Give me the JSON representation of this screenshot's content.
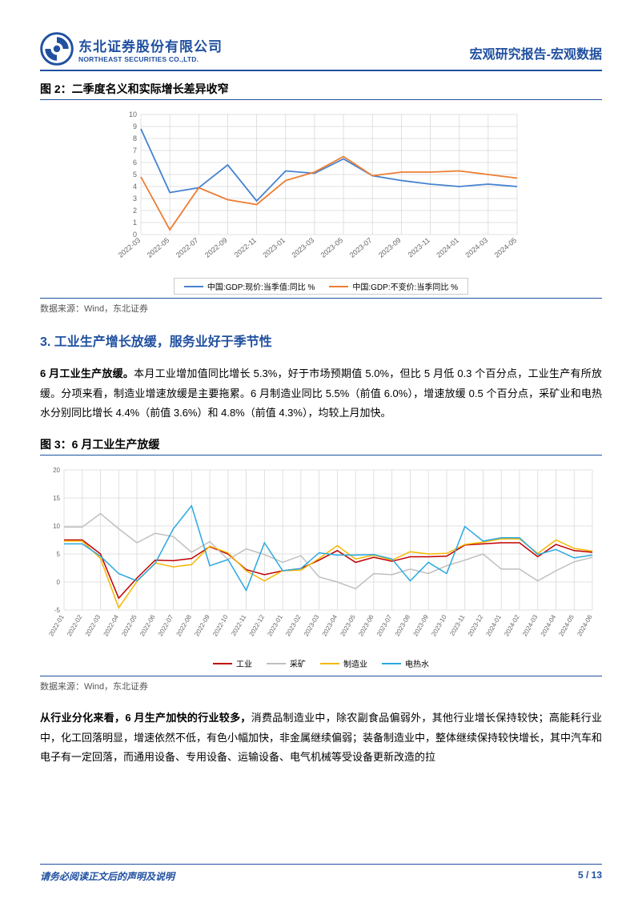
{
  "header": {
    "logo_cn": "东北证券股份有限公司",
    "logo_en": "NORTHEAST SECURITIES CO.,LTD.",
    "right_text": "宏观研究报告-宏观数据"
  },
  "fig2": {
    "title": "图 2：二季度名义和实际增长差异收窄",
    "type": "line",
    "x_labels": [
      "2022-03",
      "2022-05",
      "2022-07",
      "2022-09",
      "2022-11",
      "2023-01",
      "2023-03",
      "2023-05",
      "2023-07",
      "2023-09",
      "2023-11",
      "2024-01",
      "2024-03",
      "2024-05"
    ],
    "series": [
      {
        "name": "中国:GDP:现价:当季值:同比 %",
        "color": "#4682d0",
        "values": [
          8.8,
          3.5,
          3.9,
          5.8,
          2.8,
          5.3,
          5.1,
          6.3,
          4.9,
          4.5,
          4.2,
          4.0,
          4.2,
          4.0
        ]
      },
      {
        "name": "中国:GDP:不变价:当季同比 %",
        "color": "#ed7d31",
        "values": [
          4.8,
          0.4,
          3.9,
          2.9,
          2.5,
          4.5,
          5.2,
          6.5,
          4.9,
          5.2,
          5.2,
          5.3,
          5.0,
          4.7
        ]
      }
    ],
    "ylim": [
      0,
      10
    ],
    "ytick_step": 1,
    "grid_color": "#d9d9d9",
    "background_color": "#ffffff",
    "axis_font_size": 9,
    "line_width": 1.8
  },
  "data_source": "数据来源：Wind，东北证券",
  "section3": {
    "title": "3. 工业生产增长放缓，服务业好于季节性",
    "para1_bold": "6 月工业生产放缓。",
    "para1": "本月工业增加值同比增长 5.3%，好于市场预期值 5.0%，但比 5 月低 0.3 个百分点，工业生产有所放缓。分项来看，制造业增速放缓是主要拖累。6 月制造业同比 5.5%（前值 6.0%），增速放缓 0.5 个百分点，采矿业和电热水分别同比增长 4.4%（前值 3.6%）和 4.8%（前值 4.3%），均较上月加快。"
  },
  "fig3": {
    "title": "图 3：6 月工业生产放缓",
    "type": "line",
    "x_labels": [
      "2022-01",
      "2022-02",
      "2022-03",
      "2022-04",
      "2022-05",
      "2022-06",
      "2022-07",
      "2022-08",
      "2022-09",
      "2022-10",
      "2022-11",
      "2022-12",
      "2023-01",
      "2023-02",
      "2023-03",
      "2023-04",
      "2023-05",
      "2023-06",
      "2023-07",
      "2023-08",
      "2023-09",
      "2023-10",
      "2023-11",
      "2023-12",
      "2024-01",
      "2024-02",
      "2024-03",
      "2024-04",
      "2024-05",
      "2024-06"
    ],
    "series": [
      {
        "name": "工业",
        "color": "#c00000",
        "values": [
          7.5,
          7.5,
          5.0,
          -2.9,
          0.7,
          3.9,
          3.8,
          4.2,
          6.3,
          5.0,
          2.2,
          1.3,
          2.0,
          2.4,
          3.9,
          5.6,
          3.5,
          4.4,
          3.7,
          4.5,
          4.5,
          4.6,
          6.6,
          6.8,
          7.0,
          7.0,
          4.5,
          6.7,
          5.6,
          5.3
        ]
      },
      {
        "name": "采矿",
        "color": "#bfbfbf",
        "values": [
          9.8,
          9.8,
          12.2,
          9.5,
          7.0,
          8.7,
          8.1,
          5.3,
          7.2,
          4.0,
          5.9,
          4.9,
          3.5,
          4.7,
          0.9,
          0.0,
          -1.2,
          1.5,
          1.3,
          2.3,
          1.5,
          2.9,
          3.9,
          5.0,
          2.3,
          2.3,
          0.2,
          2.0,
          3.6,
          4.4
        ]
      },
      {
        "name": "制造业",
        "color": "#f5b800",
        "values": [
          7.3,
          7.3,
          4.2,
          -4.6,
          0.1,
          3.4,
          2.7,
          3.1,
          6.4,
          5.2,
          2.0,
          0.2,
          2.0,
          2.1,
          4.2,
          6.5,
          4.1,
          4.8,
          3.9,
          5.4,
          5.0,
          5.1,
          6.7,
          7.1,
          7.7,
          7.7,
          5.1,
          7.5,
          6.0,
          5.5
        ]
      },
      {
        "name": "电热水",
        "color": "#2aa8e0",
        "values": [
          6.8,
          6.8,
          4.6,
          1.5,
          0.2,
          3.3,
          9.5,
          13.6,
          2.9,
          4.0,
          -1.5,
          7.0,
          2.0,
          2.4,
          5.2,
          4.8,
          4.8,
          4.9,
          4.1,
          0.2,
          3.5,
          1.5,
          9.9,
          7.3,
          7.9,
          7.9,
          4.9,
          5.8,
          4.3,
          4.8
        ]
      }
    ],
    "ylim": [
      -5,
      20
    ],
    "yticks": [
      -5,
      0,
      5,
      10,
      15,
      20
    ],
    "grid_color": "#d9d9d9",
    "background_color": "#ffffff",
    "axis_font_size": 8,
    "line_width": 1.5
  },
  "para2_bold": "从行业分化来看，6 月生产加快的行业较多，",
  "para2": "消费品制造业中，除农副食品偏弱外，其他行业增长保持较快；高能耗行业中，化工回落明显，增速依然不低，有色小幅加快，非金属继续偏弱；装备制造业中，整体继续保持较快增长，其中汽车和电子有一定回落，而通用设备、专用设备、运输设备、电气机械等受设备更新改造的拉",
  "footer": {
    "left": "请务必阅读正文后的声明及说明",
    "right": "5 / 13"
  }
}
